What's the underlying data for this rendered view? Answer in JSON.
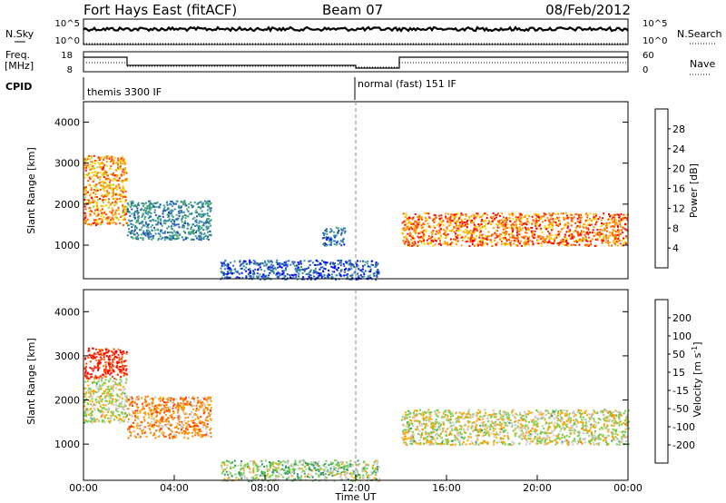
{
  "header": {
    "radar": "Fort Hays East (fitACF)",
    "beam": "Beam 07",
    "date": "08/Feb/2012"
  },
  "top_panels": {
    "nsky_label": "N.Sky",
    "nsearch_label": "N.Search",
    "nsky_ticks": [
      "10^5",
      "10^0"
    ],
    "nsearch_ticks": [
      "10^5",
      "10^0"
    ],
    "freq_label_1": "Freq.",
    "freq_label_2": "[MHz]",
    "freq_ticks": [
      "18",
      "8"
    ],
    "nave_label": "Nave",
    "nave_ticks": [
      "60",
      "0"
    ],
    "cpid_label": "CPID",
    "cpid_segments": [
      {
        "label": "themis 3300 IF",
        "start_hour": 0,
        "end_hour": 12
      },
      {
        "label": "normal (fast) 151 IF",
        "start_hour": 12,
        "end_hour": 24
      }
    ]
  },
  "chart_data": [
    {
      "type": "heatmap",
      "name": "power",
      "ylabel": "Slant Range [km]",
      "xlim": [
        0,
        24
      ],
      "ylim": [
        180,
        4500
      ],
      "y_ticks": [
        "1000",
        "2000",
        "3000",
        "4000"
      ],
      "colorbar": {
        "label": "Power [dB]",
        "range": [
          0,
          32
        ],
        "ticks": [
          "28",
          "24",
          "20",
          "16",
          "12",
          "8",
          "4"
        ],
        "colors": [
          "#0000ff",
          "#1f4fb0",
          "#2f7ab8",
          "#3c9a8c",
          "#43a870",
          "#9ed93c",
          "#ffd400",
          "#ff9a00",
          "#ff4d00",
          "#ff0000"
        ]
      },
      "features": [
        {
          "start_hour": 0.0,
          "end_hour": 1.9,
          "range_km": [
            1500,
            3200
          ],
          "level_db": 24
        },
        {
          "start_hour": 1.9,
          "end_hour": 5.6,
          "range_km": [
            1150,
            2100
          ],
          "level_db": 10
        },
        {
          "start_hour": 10.5,
          "end_hour": 11.5,
          "range_km": [
            1000,
            1450
          ],
          "level_db": 8
        },
        {
          "start_hour": 14.0,
          "end_hour": 24.0,
          "range_km": [
            1000,
            1800
          ],
          "level_db": 26
        },
        {
          "start_hour": 6.0,
          "end_hour": 13.0,
          "range_km": [
            180,
            650
          ],
          "level_db": 6
        }
      ]
    },
    {
      "type": "heatmap",
      "name": "velocity",
      "ylabel": "Slant Range [km]",
      "xlabel": "Time UT",
      "xlim": [
        0,
        24
      ],
      "ylim": [
        180,
        4500
      ],
      "y_ticks": [
        "1000",
        "2000",
        "3000",
        "4000"
      ],
      "x_ticks": [
        "00:00",
        "04:00",
        "08:00",
        "12:00",
        "16:00",
        "20:00",
        "00:00"
      ],
      "colorbar": {
        "label": "Velocity [m s^-1]",
        "range": [
          -250,
          250
        ],
        "ticks": [
          "200",
          "100",
          "50",
          "15",
          "-15",
          "-50",
          "-100",
          "-200"
        ],
        "colors": [
          "#0000dd",
          "#1f5fc8",
          "#2e9a6a",
          "#6fcf3f",
          "#c8c8c0",
          "#ffa500",
          "#ff7a00",
          "#ff3c00",
          "#ff0000"
        ]
      },
      "features": [
        {
          "start_hour": 0.0,
          "end_hour": 1.9,
          "range_km": [
            2500,
            3200
          ],
          "velocity": 200
        },
        {
          "start_hour": 0.0,
          "end_hour": 1.9,
          "range_km": [
            1500,
            2500
          ],
          "velocity": 0
        },
        {
          "start_hour": 1.9,
          "end_hour": 5.6,
          "range_km": [
            1150,
            2100
          ],
          "velocity": 80
        },
        {
          "start_hour": 14.0,
          "end_hour": 24.0,
          "range_km": [
            1000,
            1800
          ],
          "velocity": 0
        },
        {
          "start_hour": 6.0,
          "end_hour": 13.0,
          "range_km": [
            180,
            650
          ],
          "velocity": -40
        }
      ]
    }
  ]
}
